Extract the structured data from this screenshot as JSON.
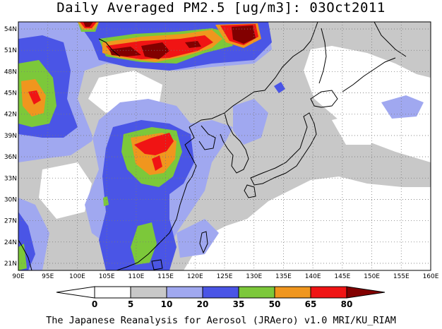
{
  "title": "Daily Averaged PM2.5 [ug/m3]: 03Oct2011",
  "credit": "The Japanese Reanalysis for Aerosol (JRAero) v1.0 MRI/KU_RIAM",
  "map": {
    "lon_range": [
      90,
      160
    ],
    "lat_range": [
      20,
      55
    ],
    "lon_ticks": [
      "90E",
      "95E",
      "100E",
      "105E",
      "110E",
      "115E",
      "120E",
      "125E",
      "130E",
      "135E",
      "140E",
      "145E",
      "150E",
      "155E",
      "160E"
    ],
    "lat_ticks": [
      "21N",
      "24N",
      "27N",
      "30N",
      "33N",
      "36N",
      "39N",
      "42N",
      "45N",
      "48N",
      "51N",
      "54N"
    ]
  },
  "colorbar": {
    "levels": [
      "0",
      "5",
      "10",
      "20",
      "35",
      "50",
      "65",
      "80"
    ],
    "colors": [
      "#ffffff",
      "#c8c8c8",
      "#a0a8f0",
      "#4a55e6",
      "#7cc83a",
      "#f0961e",
      "#f01414",
      "#820000"
    ]
  }
}
